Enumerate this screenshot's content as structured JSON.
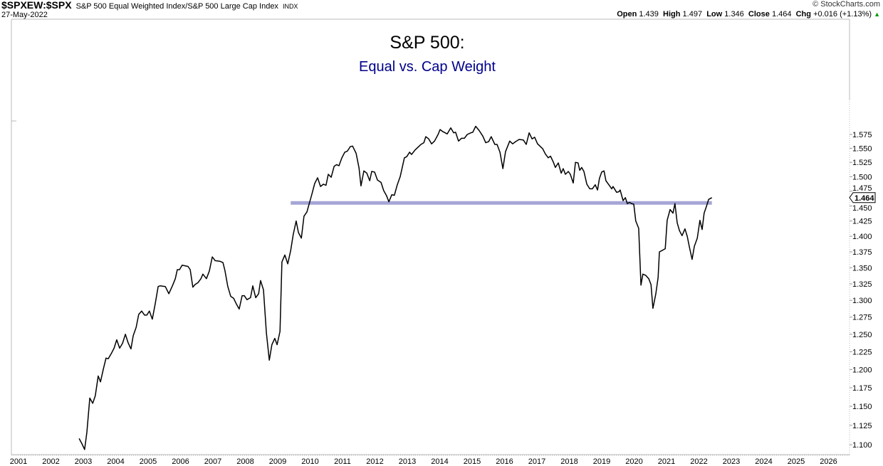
{
  "header": {
    "symbol": "$SPXEW:$SPX",
    "description": "S&P 500 Equal Weighted Index/S&P 500 Large Cap Index",
    "exchange": "INDX",
    "date": "27-May-2022",
    "copyright": "© StockCharts.com",
    "open_label": "Open",
    "open": "1.439",
    "high_label": "High",
    "high": "1.497",
    "low_label": "Low",
    "low": "1.346",
    "close_label": "Close",
    "close": "1.464",
    "chg_label": "Chg",
    "chg": "+0.016 (+1.13%)",
    "chg_icon": "triangle-up-icon"
  },
  "chart_data": {
    "type": "line",
    "title": "S&P 500:",
    "subtitle": "Equal vs. Cap Weight",
    "y_scale": "log",
    "ylim": [
      1.09,
      1.6
    ],
    "xlim": [
      2001,
      2026.6
    ],
    "x_ticks": [
      "2001",
      "2002",
      "2003",
      "2004",
      "2005",
      "2006",
      "2007",
      "2008",
      "2009",
      "2010",
      "2011",
      "2012",
      "2013",
      "2014",
      "2015",
      "2016",
      "2017",
      "2018",
      "2019",
      "2020",
      "2021",
      "2022",
      "2023",
      "2024",
      "2025",
      "2026"
    ],
    "y_ticks": [
      "1.100",
      "1.125",
      "1.150",
      "1.175",
      "1.200",
      "1.225",
      "1.250",
      "1.275",
      "1.300",
      "1.325",
      "1.350",
      "1.375",
      "1.400",
      "1.425",
      "1.450",
      "1.475",
      "1.500",
      "1.525",
      "1.550",
      "1.575"
    ],
    "last_value_label": "1.464",
    "line_color": "#000000",
    "horizontal_line": {
      "value": 1.455,
      "x_start": 2009.4,
      "x_end": 2022.4,
      "color": "#a5a5d6"
    },
    "x": [
      2002.87,
      2002.96,
      2003.04,
      2003.11,
      2003.2,
      2003.29,
      2003.37,
      2003.46,
      2003.53,
      2003.62,
      2003.7,
      2003.77,
      2003.86,
      2003.95,
      2004.03,
      2004.12,
      2004.21,
      2004.3,
      2004.38,
      2004.47,
      2004.54,
      2004.63,
      2004.71,
      2004.8,
      2004.89,
      2004.96,
      2005.04,
      2005.13,
      2005.22,
      2005.31,
      2005.37,
      2005.53,
      2005.64,
      2005.75,
      2005.84,
      2005.9,
      2005.97,
      2006.05,
      2006.14,
      2006.23,
      2006.3,
      2006.38,
      2006.45,
      2006.54,
      2006.63,
      2006.69,
      2006.8,
      2006.89,
      2006.98,
      2007.07,
      2007.22,
      2007.31,
      2007.37,
      2007.46,
      2007.55,
      2007.64,
      2007.73,
      2007.81,
      2007.9,
      2007.97,
      2008.05,
      2008.16,
      2008.23,
      2008.32,
      2008.41,
      2008.47,
      2008.56,
      2008.65,
      2008.74,
      2008.82,
      2008.91,
      2008.98,
      2009.07,
      2009.13,
      2009.22,
      2009.31,
      2009.4,
      2009.48,
      2009.57,
      2009.64,
      2009.73,
      2009.81,
      2009.9,
      2009.99,
      2010.05,
      2010.14,
      2010.23,
      2010.32,
      2010.41,
      2010.49,
      2010.56,
      2010.65,
      2010.74,
      2010.82,
      2010.89,
      2010.98,
      2011.07,
      2011.15,
      2011.24,
      2011.31,
      2011.42,
      2011.51,
      2011.57,
      2011.66,
      2011.75,
      2011.84,
      2011.9,
      2011.99,
      2012.08,
      2012.19,
      2012.27,
      2012.36,
      2012.43,
      2012.52,
      2012.6,
      2012.69,
      2012.78,
      2012.91,
      2012.98,
      2013.07,
      2013.13,
      2013.24,
      2013.33,
      2013.42,
      2013.51,
      2013.57,
      2013.66,
      2013.75,
      2013.84,
      2013.95,
      2014.01,
      2014.1,
      2014.23,
      2014.34,
      2014.43,
      2014.49,
      2014.58,
      2014.67,
      2014.76,
      2014.85,
      2014.96,
      2015.02,
      2015.11,
      2015.22,
      2015.33,
      2015.42,
      2015.51,
      2015.59,
      2015.7,
      2015.77,
      2015.86,
      2015.95,
      2016.03,
      2016.16,
      2016.25,
      2016.34,
      2016.45,
      2016.58,
      2016.67,
      2016.76,
      2016.85,
      2016.93,
      2017.02,
      2017.18,
      2017.26,
      2017.35,
      2017.42,
      2017.51,
      2017.57,
      2017.66,
      2017.75,
      2017.81,
      2017.88,
      2017.97,
      2018.03,
      2018.12,
      2018.19,
      2018.27,
      2018.32,
      2018.38,
      2018.45,
      2018.54,
      2018.63,
      2018.71,
      2018.8,
      2018.87,
      2018.93,
      2019.0,
      2019.07,
      2019.13,
      2019.22,
      2019.31,
      2019.35,
      2019.46,
      2019.53,
      2019.57,
      2019.66,
      2019.73,
      2019.79,
      2019.86,
      2019.92,
      2019.99,
      2020.05,
      2020.14,
      2020.21,
      2020.27,
      2020.36,
      2020.45,
      2020.52,
      2020.58,
      2020.67,
      2020.74,
      2020.78,
      2020.89,
      2020.96,
      2021.02,
      2021.11,
      2021.2,
      2021.26,
      2021.33,
      2021.4,
      2021.48,
      2021.57,
      2021.64,
      2021.7,
      2021.79,
      2021.86,
      2021.95,
      2022.03,
      2022.1,
      2022.16,
      2022.23,
      2022.3,
      2022.4
    ],
    "y": [
      1.108,
      1.101,
      1.094,
      1.116,
      1.161,
      1.154,
      1.164,
      1.191,
      1.183,
      1.201,
      1.216,
      1.215,
      1.222,
      1.23,
      1.242,
      1.23,
      1.237,
      1.25,
      1.238,
      1.229,
      1.248,
      1.26,
      1.279,
      1.284,
      1.278,
      1.278,
      1.284,
      1.272,
      1.295,
      1.321,
      1.322,
      1.321,
      1.31,
      1.322,
      1.333,
      1.347,
      1.347,
      1.354,
      1.353,
      1.352,
      1.347,
      1.32,
      1.324,
      1.327,
      1.333,
      1.34,
      1.333,
      1.345,
      1.367,
      1.361,
      1.36,
      1.358,
      1.346,
      1.321,
      1.306,
      1.303,
      1.294,
      1.287,
      1.307,
      1.307,
      1.301,
      1.304,
      1.322,
      1.304,
      1.31,
      1.33,
      1.316,
      1.252,
      1.213,
      1.235,
      1.244,
      1.235,
      1.254,
      1.359,
      1.37,
      1.356,
      1.377,
      1.403,
      1.425,
      1.406,
      1.397,
      1.433,
      1.44,
      1.457,
      1.469,
      1.488,
      1.498,
      1.483,
      1.487,
      1.485,
      1.504,
      1.499,
      1.518,
      1.521,
      1.519,
      1.533,
      1.543,
      1.545,
      1.553,
      1.554,
      1.541,
      1.515,
      1.484,
      1.51,
      1.506,
      1.493,
      1.509,
      1.508,
      1.494,
      1.49,
      1.476,
      1.467,
      1.457,
      1.469,
      1.468,
      1.486,
      1.5,
      1.533,
      1.535,
      1.543,
      1.539,
      1.547,
      1.552,
      1.557,
      1.56,
      1.571,
      1.567,
      1.558,
      1.563,
      1.575,
      1.584,
      1.58,
      1.576,
      1.587,
      1.578,
      1.579,
      1.563,
      1.568,
      1.568,
      1.575,
      1.578,
      1.579,
      1.59,
      1.582,
      1.572,
      1.56,
      1.562,
      1.571,
      1.557,
      1.557,
      1.543,
      1.514,
      1.544,
      1.563,
      1.558,
      1.562,
      1.566,
      1.565,
      1.557,
      1.578,
      1.567,
      1.57,
      1.558,
      1.549,
      1.54,
      1.533,
      1.536,
      1.525,
      1.516,
      1.524,
      1.506,
      1.514,
      1.504,
      1.509,
      1.504,
      1.489,
      1.525,
      1.524,
      1.511,
      1.516,
      1.509,
      1.487,
      1.479,
      1.479,
      1.486,
      1.477,
      1.497,
      1.508,
      1.51,
      1.493,
      1.486,
      1.479,
      1.483,
      1.473,
      1.474,
      1.477,
      1.459,
      1.464,
      1.454,
      1.456,
      1.454,
      1.453,
      1.425,
      1.413,
      1.323,
      1.34,
      1.338,
      1.333,
      1.324,
      1.288,
      1.31,
      1.335,
      1.375,
      1.378,
      1.38,
      1.426,
      1.444,
      1.438,
      1.454,
      1.422,
      1.409,
      1.401,
      1.412,
      1.4,
      1.384,
      1.363,
      1.384,
      1.397,
      1.426,
      1.411,
      1.438,
      1.449,
      1.461,
      1.464
    ]
  }
}
